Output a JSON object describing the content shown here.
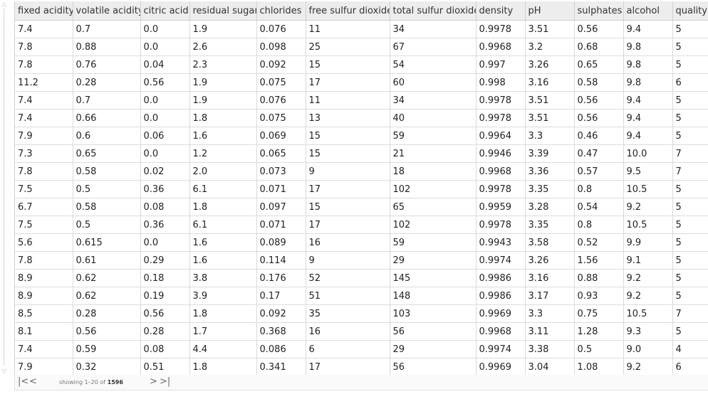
{
  "columns": [
    "fixed acidity",
    "volatile acidity",
    "citric acid",
    "residual sugar",
    "chlorides",
    "free sulfur dioxide",
    "total sulfur dioxide",
    "density",
    "pH",
    "sulphates",
    "alcohol",
    "quality"
  ],
  "rows": [
    [
      "7.4",
      "0.7",
      "0.0",
      "1.9",
      "0.076",
      "11",
      "34",
      "0.9978",
      "3.51",
      "0.56",
      "9.4",
      "5"
    ],
    [
      "7.8",
      "0.88",
      "0.0",
      "2.6",
      "0.098",
      "25",
      "67",
      "0.9968",
      "3.2",
      "0.68",
      "9.8",
      "5"
    ],
    [
      "7.8",
      "0.76",
      "0.04",
      "2.3",
      "0.092",
      "15",
      "54",
      "0.997",
      "3.26",
      "0.65",
      "9.8",
      "5"
    ],
    [
      "11.2",
      "0.28",
      "0.56",
      "1.9",
      "0.075",
      "17",
      "60",
      "0.998",
      "3.16",
      "0.58",
      "9.8",
      "6"
    ],
    [
      "7.4",
      "0.7",
      "0.0",
      "1.9",
      "0.076",
      "11",
      "34",
      "0.9978",
      "3.51",
      "0.56",
      "9.4",
      "5"
    ],
    [
      "7.4",
      "0.66",
      "0.0",
      "1.8",
      "0.075",
      "13",
      "40",
      "0.9978",
      "3.51",
      "0.56",
      "9.4",
      "5"
    ],
    [
      "7.9",
      "0.6",
      "0.06",
      "1.6",
      "0.069",
      "15",
      "59",
      "0.9964",
      "3.3",
      "0.46",
      "9.4",
      "5"
    ],
    [
      "7.3",
      "0.65",
      "0.0",
      "1.2",
      "0.065",
      "15",
      "21",
      "0.9946",
      "3.39",
      "0.47",
      "10.0",
      "7"
    ],
    [
      "7.8",
      "0.58",
      "0.02",
      "2.0",
      "0.073",
      "9",
      "18",
      "0.9968",
      "3.36",
      "0.57",
      "9.5",
      "7"
    ],
    [
      "7.5",
      "0.5",
      "0.36",
      "6.1",
      "0.071",
      "17",
      "102",
      "0.9978",
      "3.35",
      "0.8",
      "10.5",
      "5"
    ],
    [
      "6.7",
      "0.58",
      "0.08",
      "1.8",
      "0.097",
      "15",
      "65",
      "0.9959",
      "3.28",
      "0.54",
      "9.2",
      "5"
    ],
    [
      "7.5",
      "0.5",
      "0.36",
      "6.1",
      "0.071",
      "17",
      "102",
      "0.9978",
      "3.35",
      "0.8",
      "10.5",
      "5"
    ],
    [
      "5.6",
      "0.615",
      "0.0",
      "1.6",
      "0.089",
      "16",
      "59",
      "0.9943",
      "3.58",
      "0.52",
      "9.9",
      "5"
    ],
    [
      "7.8",
      "0.61",
      "0.29",
      "1.6",
      "0.114",
      "9",
      "29",
      "0.9974",
      "3.26",
      "1.56",
      "9.1",
      "5"
    ],
    [
      "8.9",
      "0.62",
      "0.18",
      "3.8",
      "0.176",
      "52",
      "145",
      "0.9986",
      "3.16",
      "0.88",
      "9.2",
      "5"
    ],
    [
      "8.9",
      "0.62",
      "0.19",
      "3.9",
      "0.17",
      "51",
      "148",
      "0.9986",
      "3.17",
      "0.93",
      "9.2",
      "5"
    ],
    [
      "8.5",
      "0.28",
      "0.56",
      "1.8",
      "0.092",
      "35",
      "103",
      "0.9969",
      "3.3",
      "0.75",
      "10.5",
      "7"
    ],
    [
      "8.1",
      "0.56",
      "0.28",
      "1.7",
      "0.368",
      "16",
      "56",
      "0.9968",
      "3.11",
      "1.28",
      "9.3",
      "5"
    ],
    [
      "7.4",
      "0.59",
      "0.08",
      "4.4",
      "0.086",
      "6",
      "29",
      "0.9974",
      "3.38",
      "0.5",
      "9.0",
      "4"
    ],
    [
      "7.9",
      "0.32",
      "0.51",
      "1.8",
      "0.341",
      "17",
      "56",
      "0.9969",
      "3.04",
      "1.08",
      "9.2",
      "6"
    ]
  ],
  "footer": {
    "first_icon": "|<",
    "prev_icon": "<",
    "next_icon": ">",
    "last_icon": ">|",
    "showing_prefix": "showing 1–20 of",
    "total": "1596"
  },
  "scrollbar": {
    "up_icon": "△",
    "down_icon": "▽"
  }
}
